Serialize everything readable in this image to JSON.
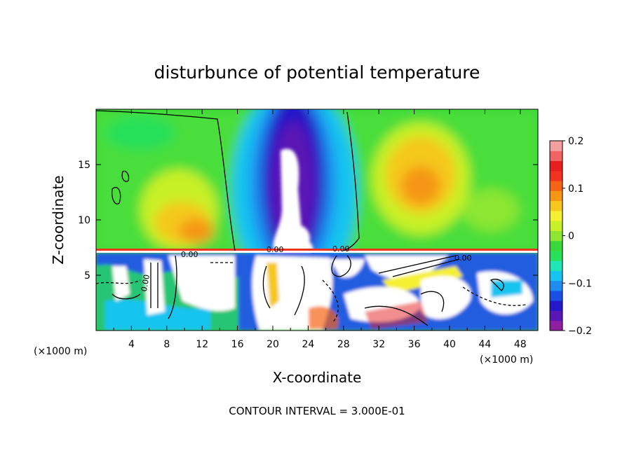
{
  "chart_data": {
    "type": "heatmap",
    "title": "disturbunce of potential temperature",
    "xlabel": "X-coordinate",
    "ylabel": "Z-coordinate",
    "x_unit_left": "(×1000 m)",
    "x_unit_right": "(×1000 m)",
    "xlim": [
      0,
      50
    ],
    "ylim": [
      0,
      20
    ],
    "x_ticks": [
      "4",
      "8",
      "12",
      "16",
      "20",
      "24",
      "28",
      "32",
      "36",
      "40",
      "44",
      "48"
    ],
    "y_ticks": [
      "5",
      "10",
      "15"
    ],
    "colorbar": {
      "range": [
        -0.2,
        0.2
      ],
      "tick_labels": [
        "0.2",
        "0.1",
        "0",
        "−0.1",
        "−0.2"
      ],
      "colors": [
        "#8f1fa0",
        "#5a16b4",
        "#2418c8",
        "#1a4fe6",
        "#1f8cf0",
        "#17c4f0",
        "#1ee6b4",
        "#28e05a",
        "#3ad83a",
        "#8ce632",
        "#c8f028",
        "#f5f032",
        "#f5c81e",
        "#f59614",
        "#f56414",
        "#f0321e",
        "#e61e1e",
        "#f06464",
        "#f5a0a0"
      ]
    },
    "contour_labels": [
      "0.00",
      "0.00",
      "0.00",
      "0.00",
      "0.00"
    ],
    "footer": "CONTOUR INTERVAL = 3.000E-01"
  }
}
